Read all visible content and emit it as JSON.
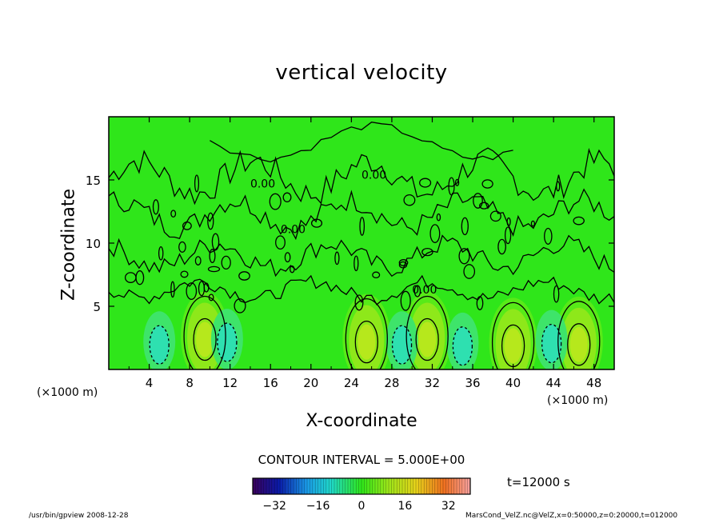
{
  "chart_data": {
    "type": "contour",
    "title": "vertical velocity",
    "xlabel": "X-coordinate",
    "ylabel": "Z-coordinate",
    "x_unit_label": "(×1000 m)",
    "xlim": [
      0,
      50
    ],
    "ylim": [
      0,
      20
    ],
    "x_ticks": [
      4,
      8,
      12,
      16,
      20,
      24,
      28,
      32,
      36,
      40,
      44,
      48
    ],
    "y_ticks": [
      5,
      10,
      15
    ],
    "contour_labels": [
      {
        "text": "0.00",
        "x": 14,
        "z": 14.4
      },
      {
        "text": "0.00",
        "x": 17,
        "z": 10.8
      },
      {
        "text": "0.00",
        "x": 25,
        "z": 15.1
      },
      {
        "text": "0.00",
        "x": 30,
        "z": 6.0
      }
    ],
    "updraft_cores": [
      {
        "x": 9.5,
        "z": 2.5,
        "peak": 12
      },
      {
        "x": 25.5,
        "z": 2.3,
        "peak": 10
      },
      {
        "x": 31.5,
        "z": 2.5,
        "peak": 11
      },
      {
        "x": 40.0,
        "z": 2.0,
        "peak": 9
      },
      {
        "x": 46.5,
        "z": 2.1,
        "peak": 10
      }
    ],
    "downdraft_cores": [
      {
        "x": 5.0,
        "z": 2.2,
        "peak": -8
      },
      {
        "x": 11.7,
        "z": 2.4,
        "peak": -7
      },
      {
        "x": 29.0,
        "z": 2.2,
        "peak": -6
      },
      {
        "x": 35.0,
        "z": 2.1,
        "peak": -9
      },
      {
        "x": 43.8,
        "z": 2.3,
        "peak": -10
      }
    ],
    "contour_interval_text": "CONTOUR INTERVAL = 5.000E+00",
    "colorbar": {
      "ticks": [
        -32,
        -16,
        0,
        16,
        32
      ],
      "range": [
        -40,
        40
      ]
    },
    "time_label": "t=12000 s"
  },
  "footer": {
    "left": "/usr/bin/gpview  2008-12-28",
    "right": "MarsCond_VelZ.nc@VelZ,x=0:50000,z=0:20000,t=012000"
  },
  "colors": {
    "field_background": "#2fe61a",
    "contour_line": "#000000"
  }
}
